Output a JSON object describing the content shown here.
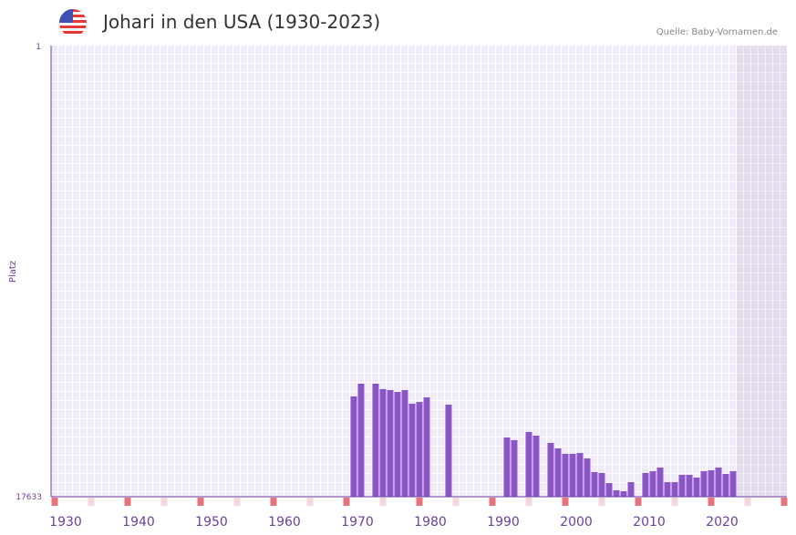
{
  "header": {
    "title": "Johari in den USA (1930-2023)",
    "source": "Quelle: Baby-Vornamen.de",
    "flag_icon": "us-flag-icon"
  },
  "chart_data": {
    "type": "bar",
    "title": "Johari in den USA (1930-2023)",
    "xlabel": "",
    "ylabel": "Platz",
    "y_ticks": [
      "1",
      "17633"
    ],
    "ylim": [
      1,
      17633
    ],
    "y_inverted": true,
    "x_ticks": [
      "1930",
      "1940",
      "1950",
      "1960",
      "1970",
      "1980",
      "1990",
      "2000",
      "2010",
      "2020"
    ],
    "xlim": [
      1928,
      2028
    ],
    "colors": {
      "bar": "#8b55c8",
      "axis": "#6b3fa0",
      "marker_major": "#e8737a",
      "marker_minor": "#f5d5dd"
    },
    "x": [
      1969,
      1970,
      1972,
      1973,
      1974,
      1975,
      1976,
      1977,
      1978,
      1979,
      1982,
      1990,
      1991,
      1993,
      1994,
      1996,
      1997,
      1998,
      1999,
      2000,
      2001,
      2002,
      2003,
      2004,
      2005,
      2006,
      2007,
      2009,
      2010,
      2011,
      2012,
      2013,
      2014,
      2015,
      2016,
      2017,
      2018,
      2019,
      2020,
      2021
    ],
    "values": [
      13714,
      13216,
      13216,
      13429,
      13465,
      13536,
      13465,
      13999,
      13928,
      13750,
      14035,
      15317,
      15424,
      15103,
      15246,
      15531,
      15745,
      15958,
      15958,
      15923,
      16137,
      16671,
      16707,
      17098,
      17383,
      17419,
      17063,
      16707,
      16636,
      16493,
      17063,
      17063,
      16778,
      16778,
      16885,
      16636,
      16600,
      16493,
      16742,
      16636
    ]
  }
}
